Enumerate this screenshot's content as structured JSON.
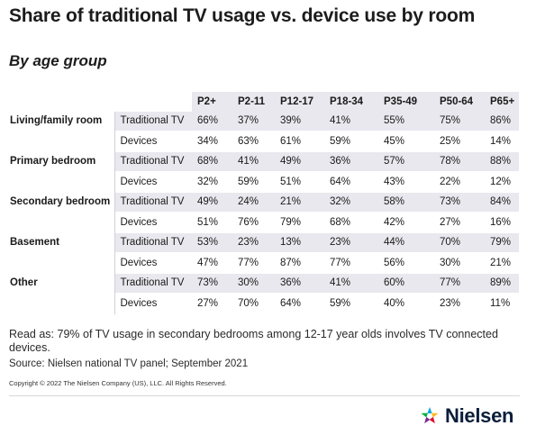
{
  "title": "Share of traditional TV usage vs. device use by room",
  "subtitle": "By age group",
  "chart_data": {
    "type": "table",
    "columns": [
      "P2+",
      "P2-11",
      "P12-17",
      "P18-34",
      "P35-49",
      "P50-64",
      "P65+"
    ],
    "rows": [
      {
        "room": "Living/family room",
        "metric": "Traditional TV",
        "values": [
          "66%",
          "37%",
          "39%",
          "41%",
          "55%",
          "75%",
          "86%"
        ]
      },
      {
        "room": "",
        "metric": "Devices",
        "values": [
          "34%",
          "63%",
          "61%",
          "59%",
          "45%",
          "25%",
          "14%"
        ]
      },
      {
        "room": "Primary bedroom",
        "metric": "Traditional TV",
        "values": [
          "68%",
          "41%",
          "49%",
          "36%",
          "57%",
          "78%",
          "88%"
        ]
      },
      {
        "room": "",
        "metric": "Devices",
        "values": [
          "32%",
          "59%",
          "51%",
          "64%",
          "43%",
          "22%",
          "12%"
        ]
      },
      {
        "room": "Secondary bedroom",
        "metric": "Traditional TV",
        "values": [
          "49%",
          "24%",
          "21%",
          "32%",
          "58%",
          "73%",
          "84%"
        ]
      },
      {
        "room": "",
        "metric": "Devices",
        "values": [
          "51%",
          "76%",
          "79%",
          "68%",
          "42%",
          "27%",
          "16%"
        ]
      },
      {
        "room": "Basement",
        "metric": "Traditional TV",
        "values": [
          "53%",
          "23%",
          "13%",
          "23%",
          "44%",
          "70%",
          "79%"
        ]
      },
      {
        "room": "",
        "metric": "Devices",
        "values": [
          "47%",
          "77%",
          "87%",
          "77%",
          "56%",
          "30%",
          "21%"
        ]
      },
      {
        "room": "Other",
        "metric": "Traditional TV",
        "values": [
          "73%",
          "30%",
          "36%",
          "41%",
          "60%",
          "77%",
          "89%"
        ]
      },
      {
        "room": "",
        "metric": "Devices",
        "values": [
          "27%",
          "70%",
          "64%",
          "59%",
          "40%",
          "23%",
          "11%"
        ]
      }
    ]
  },
  "note": "Read as: 79% of TV usage in secondary bedrooms among 12-17 year olds involves TV connected devices.",
  "source": "Source: Nielsen national TV panel; September 2021",
  "copyright": "Copyright © 2022 The Nielsen Company (US), LLC. All Rights Reserved.",
  "logo": {
    "text": "Nielsen",
    "icon": "nielsen-star-icon",
    "colors": [
      "#00a7e1",
      "#ffb81c",
      "#e4002b",
      "#7b2d8e",
      "#00b140"
    ]
  },
  "colors": {
    "band": "#e8e8ee",
    "text": "#1a1a1a"
  }
}
